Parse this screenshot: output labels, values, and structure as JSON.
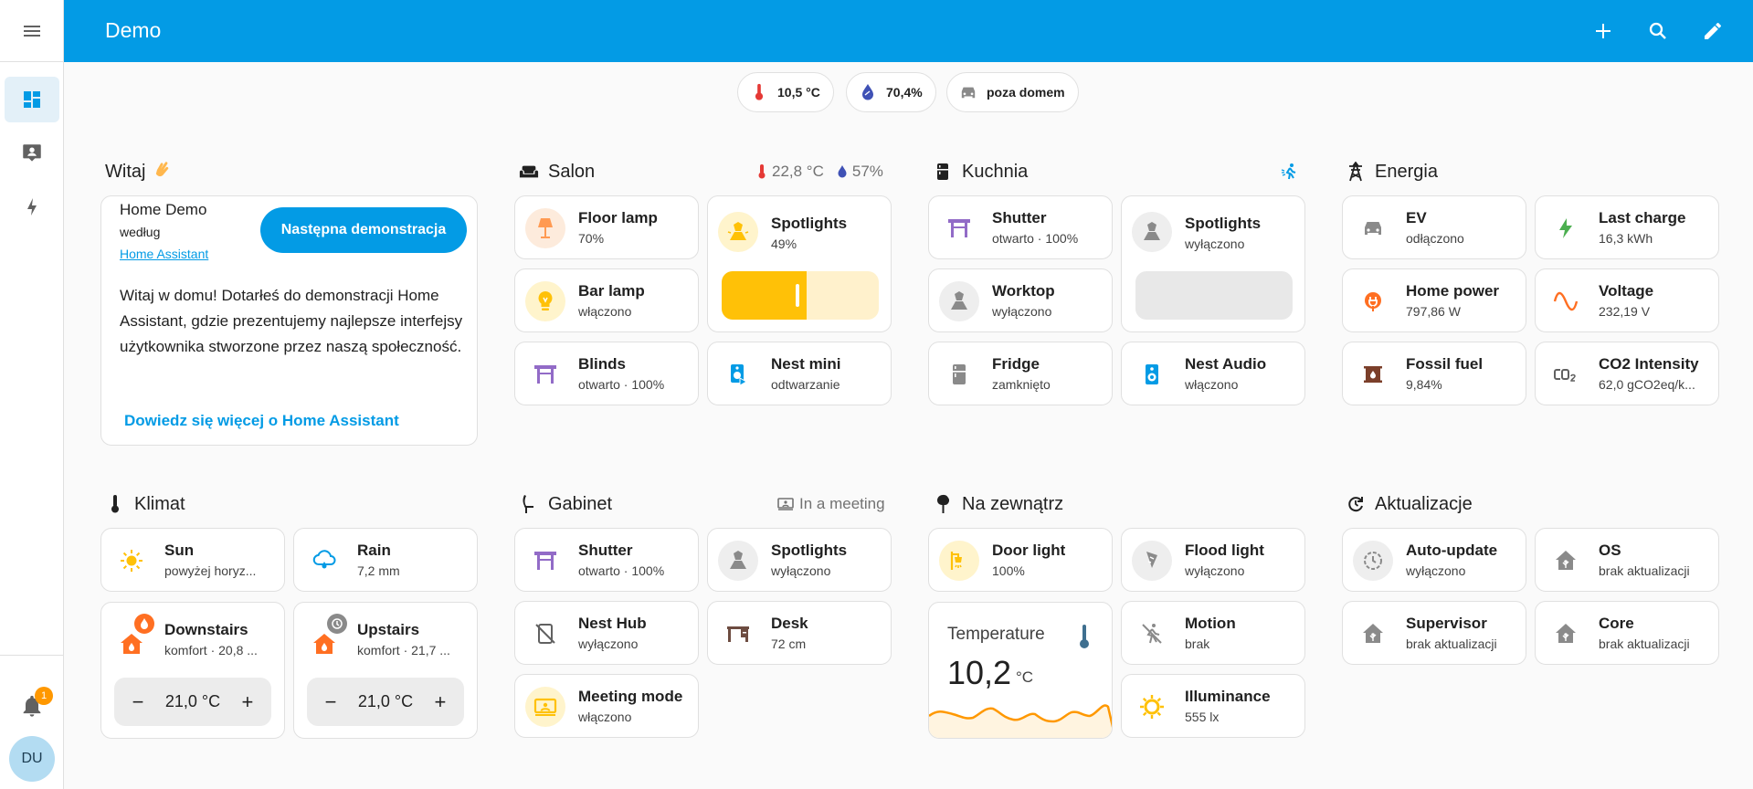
{
  "header": {
    "title": "Demo"
  },
  "sidebar": {
    "notifications_count": "1",
    "avatar_initials": "DU"
  },
  "badges": [
    {
      "icon": "thermometer-icon",
      "value": "10,5 °C"
    },
    {
      "icon": "water-drop-icon",
      "value": "70,4%"
    },
    {
      "icon": "car-icon",
      "value": "poza domem"
    }
  ],
  "welcome": {
    "heading": "Witaj",
    "title": "Home Demo",
    "by": "według",
    "author_link": "Home Assistant",
    "next_button": "Następna demonstracja",
    "text": "Witaj w domu! Dotarłeś do demonstracji Home Assistant, gdzie prezentujemy najlepsze interfejsy użytkownika stworzone przez naszą społeczność.",
    "learn_more": "Dowiedz się więcej o Home Assistant"
  },
  "salon": {
    "heading": "Salon",
    "temp": "22,8 °C",
    "humidity": "57%",
    "floor_lamp": {
      "name": "Floor lamp",
      "state": "70%"
    },
    "spotlights": {
      "name": "Spotlights",
      "state": "49%",
      "level": 0.49
    },
    "bar_lamp": {
      "name": "Bar lamp",
      "state": "włączono"
    },
    "blinds": {
      "name": "Blinds",
      "state": "otwarto · 100%"
    },
    "nest_mini": {
      "name": "Nest mini",
      "state": "odtwarzanie"
    }
  },
  "kuchnia": {
    "heading": "Kuchnia",
    "shutter": {
      "name": "Shutter",
      "state": "otwarto · 100%"
    },
    "spotlights": {
      "name": "Spotlights",
      "state": "wyłączono",
      "level": 0
    },
    "worktop": {
      "name": "Worktop",
      "state": "wyłączono"
    },
    "fridge": {
      "name": "Fridge",
      "state": "zamknięto"
    },
    "nest_audio": {
      "name": "Nest Audio",
      "state": "włączono"
    }
  },
  "energia": {
    "heading": "Energia",
    "ev": {
      "name": "EV",
      "state": "odłączono"
    },
    "last_charge": {
      "name": "Last charge",
      "state": "16,3 kWh"
    },
    "home_power": {
      "name": "Home power",
      "state": "797,86 W"
    },
    "voltage": {
      "name": "Voltage",
      "state": "232,19 V"
    },
    "fossil_fuel": {
      "name": "Fossil fuel",
      "state": "9,84%"
    },
    "co2": {
      "name": "CO2 Intensity",
      "state": "62,0 gCO2eq/k..."
    }
  },
  "klimat": {
    "heading": "Klimat",
    "sun": {
      "name": "Sun",
      "state": "powyżej horyz..."
    },
    "rain": {
      "name": "Rain",
      "state": "7,2 mm"
    },
    "downstairs": {
      "name": "Downstairs",
      "state": "komfort · 20,8 ...",
      "target": "21,0 °C"
    },
    "upstairs": {
      "name": "Upstairs",
      "state": "komfort · 21,7 ...",
      "target": "21,0 °C"
    }
  },
  "gabinet": {
    "heading": "Gabinet",
    "aux": "In a meeting",
    "shutter": {
      "name": "Shutter",
      "state": "otwarto · 100%"
    },
    "spotlights": {
      "name": "Spotlights",
      "state": "wyłączono"
    },
    "nest_hub": {
      "name": "Nest Hub",
      "state": "wyłączono"
    },
    "desk": {
      "name": "Desk",
      "state": "72 cm"
    },
    "meeting_mode": {
      "name": "Meeting mode",
      "state": "włączono"
    }
  },
  "na_zewnatrz": {
    "heading": "Na zewnątrz",
    "door_light": {
      "name": "Door light",
      "state": "100%"
    },
    "flood_light": {
      "name": "Flood light",
      "state": "wyłączono"
    },
    "temperature": {
      "name": "Temperature",
      "value": "10,2",
      "unit": "°C"
    },
    "motion": {
      "name": "Motion",
      "state": "brak"
    },
    "illuminance": {
      "name": "Illuminance",
      "state": "555 lx"
    }
  },
  "aktualizacje": {
    "heading": "Aktualizacje",
    "auto_update": {
      "name": "Auto-update",
      "state": "wyłączono"
    },
    "os": {
      "name": "OS",
      "state": "brak aktualizacji"
    },
    "supervisor": {
      "name": "Supervisor",
      "state": "brak aktualizacji"
    },
    "core": {
      "name": "Core",
      "state": "brak aktualizacji"
    }
  },
  "colors": {
    "primary": "#039be5",
    "amber": "#ffc107",
    "orange": "#ff6f22",
    "purple": "#926bc7",
    "green": "#4caf50"
  }
}
